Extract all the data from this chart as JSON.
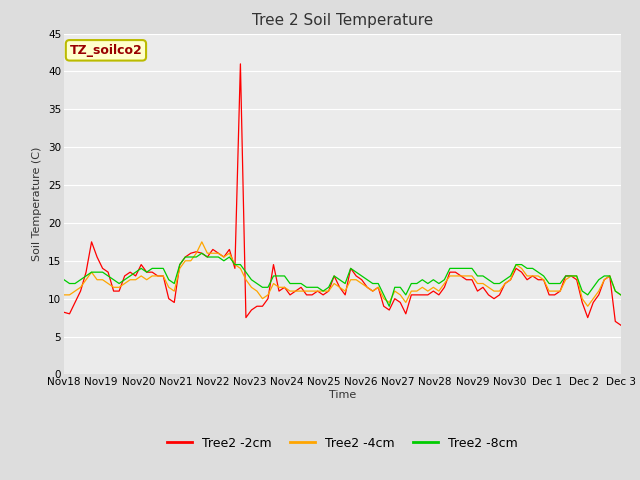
{
  "title": "Tree 2 Soil Temperature",
  "ylabel": "Soil Temperature (C)",
  "xlabel": "Time",
  "legend_label": "TZ_soilco2",
  "ylim": [
    0,
    45
  ],
  "yticks": [
    0,
    5,
    10,
    15,
    20,
    25,
    30,
    35,
    40,
    45
  ],
  "xtick_labels": [
    "Nov 18",
    "Nov 19",
    "Nov 20",
    "Nov 21",
    "Nov 22",
    "Nov 23",
    "Nov 24",
    "Nov 25",
    "Nov 26",
    "Nov 27",
    "Nov 28",
    "Nov 29",
    "Nov 30",
    "Dec 1",
    "Dec 2",
    "Dec 3"
  ],
  "series": {
    "2cm": {
      "color": "#FF0000",
      "label": "Tree2 -2cm",
      "values": [
        8.2,
        8.0,
        9.5,
        11.0,
        13.5,
        17.5,
        15.5,
        14.0,
        13.5,
        11.0,
        11.0,
        13.0,
        13.5,
        13.0,
        14.5,
        13.5,
        13.5,
        13.0,
        13.0,
        10.0,
        9.5,
        14.5,
        15.5,
        16.0,
        16.2,
        16.0,
        15.5,
        16.5,
        16.0,
        15.5,
        16.5,
        14.0,
        41.0,
        7.5,
        8.5,
        9.0,
        9.0,
        10.0,
        14.5,
        11.0,
        11.5,
        10.5,
        11.0,
        11.5,
        10.5,
        10.5,
        11.0,
        10.5,
        11.0,
        13.0,
        11.5,
        10.5,
        14.0,
        13.0,
        12.5,
        11.5,
        11.0,
        11.5,
        9.0,
        8.5,
        10.0,
        9.5,
        8.0,
        10.5,
        10.5,
        10.5,
        10.5,
        11.0,
        10.5,
        11.5,
        13.5,
        13.5,
        13.0,
        12.5,
        12.5,
        11.0,
        11.5,
        10.5,
        10.0,
        10.5,
        12.0,
        12.5,
        14.0,
        13.5,
        12.5,
        13.0,
        12.5,
        12.5,
        10.5,
        10.5,
        11.0,
        13.0,
        13.0,
        12.5,
        9.5,
        7.5,
        9.5,
        10.5,
        12.5,
        13.0,
        7.0,
        6.5
      ]
    },
    "4cm": {
      "color": "#FFA500",
      "label": "Tree2 -4cm",
      "values": [
        10.5,
        10.5,
        11.0,
        11.5,
        12.5,
        13.5,
        12.5,
        12.5,
        12.0,
        11.5,
        11.5,
        12.0,
        12.5,
        12.5,
        13.0,
        12.5,
        13.0,
        13.0,
        13.0,
        11.5,
        11.0,
        14.0,
        15.0,
        15.0,
        16.0,
        17.5,
        16.0,
        16.0,
        16.0,
        15.5,
        16.0,
        14.5,
        14.0,
        12.5,
        11.5,
        11.0,
        10.0,
        10.5,
        12.0,
        11.5,
        11.5,
        11.0,
        11.0,
        11.0,
        11.0,
        11.0,
        11.0,
        11.0,
        11.0,
        12.0,
        11.5,
        11.0,
        12.5,
        12.5,
        12.0,
        11.5,
        11.0,
        11.5,
        10.0,
        9.5,
        11.0,
        10.5,
        9.5,
        11.0,
        11.0,
        11.5,
        11.0,
        11.5,
        11.0,
        12.0,
        13.0,
        13.0,
        13.0,
        13.0,
        13.0,
        12.0,
        12.0,
        11.5,
        11.0,
        11.0,
        12.0,
        12.5,
        14.5,
        14.0,
        13.0,
        13.0,
        13.0,
        12.5,
        11.0,
        11.0,
        11.0,
        12.5,
        13.0,
        13.0,
        10.0,
        9.0,
        10.0,
        11.0,
        12.5,
        13.0,
        11.0,
        10.5
      ]
    },
    "8cm": {
      "color": "#00CC00",
      "label": "Tree2 -8cm",
      "values": [
        12.5,
        12.0,
        12.0,
        12.5,
        13.0,
        13.5,
        13.5,
        13.5,
        13.0,
        12.5,
        12.0,
        12.5,
        13.0,
        13.5,
        14.0,
        13.5,
        14.0,
        14.0,
        14.0,
        12.5,
        12.0,
        14.5,
        15.5,
        15.5,
        15.5,
        16.0,
        15.5,
        15.5,
        15.5,
        15.0,
        15.5,
        14.5,
        14.5,
        13.5,
        12.5,
        12.0,
        11.5,
        11.5,
        13.0,
        13.0,
        13.0,
        12.0,
        12.0,
        12.0,
        11.5,
        11.5,
        11.5,
        11.0,
        11.5,
        13.0,
        12.5,
        12.0,
        14.0,
        13.5,
        13.0,
        12.5,
        12.0,
        12.0,
        10.5,
        9.0,
        11.5,
        11.5,
        10.5,
        12.0,
        12.0,
        12.5,
        12.0,
        12.5,
        12.0,
        12.5,
        14.0,
        14.0,
        14.0,
        14.0,
        14.0,
        13.0,
        13.0,
        12.5,
        12.0,
        12.0,
        12.5,
        13.0,
        14.5,
        14.5,
        14.0,
        14.0,
        13.5,
        13.0,
        12.0,
        12.0,
        12.0,
        13.0,
        13.0,
        13.0,
        11.0,
        10.5,
        11.5,
        12.5,
        13.0,
        13.0,
        11.0,
        10.5
      ]
    }
  },
  "bg_color": "#dddddd",
  "plot_bg_color": "#ebebeb",
  "grid_color": "#ffffff",
  "title_fontsize": 11,
  "label_fontsize": 8,
  "tick_fontsize": 7.5,
  "annot_fontsize": 9,
  "legend_fontsize": 9
}
